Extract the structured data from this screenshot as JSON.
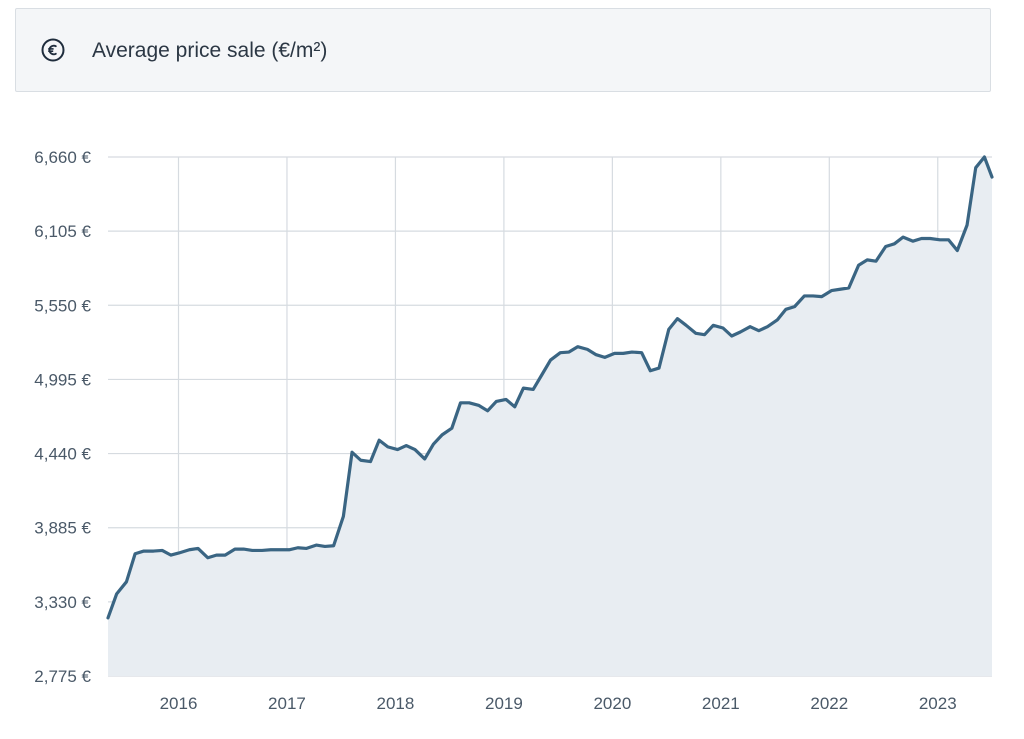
{
  "header": {
    "icon": "euro-circle-icon",
    "title": "Average price sale (€/m²)"
  },
  "colors": {
    "line": "#3a6583",
    "area": "#e8edf2",
    "grid": "#d6dbe0",
    "tick_text": "#4a5968",
    "header_bg": "#f4f6f8",
    "header_border": "#d9dee3"
  },
  "chart_data": {
    "type": "area",
    "title": "Average price sale (€/m²)",
    "xlabel": "",
    "ylabel": "",
    "y_unit": "€",
    "ylim": [
      2775,
      6660
    ],
    "y_ticks": [
      2775,
      3330,
      3885,
      4440,
      4995,
      5550,
      6105,
      6660
    ],
    "y_tick_labels": [
      "2,775 €",
      "3,330 €",
      "3,885 €",
      "4,440 €",
      "4,995 €",
      "5,550 €",
      "6,105 €",
      "6,660 €"
    ],
    "xlim": [
      2015.35,
      2023.5
    ],
    "x_ticks": [
      2016,
      2017,
      2018,
      2019,
      2020,
      2021,
      2022,
      2023
    ],
    "x_tick_labels": [
      "2016",
      "2017",
      "2018",
      "2019",
      "2020",
      "2021",
      "2022",
      "2023"
    ],
    "grid": true,
    "legend": "none",
    "series": [
      {
        "x": [
          2015.35,
          2015.43,
          2015.52,
          2015.6,
          2015.68,
          2015.77,
          2015.85,
          2015.93,
          2016.0,
          2016.1,
          2016.18,
          2016.27,
          2016.35,
          2016.43,
          2016.52,
          2016.6,
          2016.68,
          2016.77,
          2016.85,
          2016.93,
          2017.02,
          2017.1,
          2017.18,
          2017.27,
          2017.35,
          2017.43,
          2017.52,
          2017.6,
          2017.68,
          2017.77,
          2017.85,
          2017.93,
          2018.02,
          2018.1,
          2018.18,
          2018.27,
          2018.35,
          2018.43,
          2018.52,
          2018.6,
          2018.68,
          2018.77,
          2018.85,
          2018.93,
          2019.02,
          2019.1,
          2019.18,
          2019.27,
          2019.35,
          2019.43,
          2019.52,
          2019.6,
          2019.68,
          2019.77,
          2019.85,
          2019.93,
          2020.02,
          2020.1,
          2020.18,
          2020.27,
          2020.35,
          2020.43,
          2020.52,
          2020.6,
          2020.68,
          2020.77,
          2020.85,
          2020.93,
          2021.02,
          2021.1,
          2021.18,
          2021.27,
          2021.35,
          2021.43,
          2021.52,
          2021.6,
          2021.68,
          2021.77,
          2021.85,
          2021.93,
          2022.02,
          2022.1,
          2022.18,
          2022.27,
          2022.35,
          2022.43,
          2022.52,
          2022.6,
          2022.68,
          2022.77,
          2022.85,
          2022.93,
          2023.02,
          2023.1,
          2023.18,
          2023.27,
          2023.35,
          2023.43,
          2023.5
        ],
        "y": [
          3210,
          3390,
          3480,
          3690,
          3710,
          3710,
          3715,
          3680,
          3695,
          3720,
          3730,
          3660,
          3680,
          3680,
          3725,
          3725,
          3715,
          3715,
          3720,
          3720,
          3720,
          3735,
          3730,
          3755,
          3745,
          3750,
          3970,
          4450,
          4390,
          4380,
          4540,
          4490,
          4470,
          4500,
          4470,
          4400,
          4510,
          4580,
          4630,
          4820,
          4820,
          4800,
          4760,
          4830,
          4845,
          4790,
          4930,
          4920,
          5030,
          5140,
          5195,
          5200,
          5240,
          5220,
          5180,
          5160,
          5190,
          5190,
          5200,
          5195,
          5060,
          5080,
          5370,
          5450,
          5400,
          5340,
          5330,
          5400,
          5380,
          5320,
          5350,
          5390,
          5360,
          5390,
          5440,
          5520,
          5540,
          5620,
          5620,
          5615,
          5660,
          5670,
          5680,
          5850,
          5890,
          5880,
          5990,
          6010,
          6060,
          6030,
          6050,
          6050,
          6040,
          6040,
          5960,
          6150,
          6580,
          6660,
          6510
        ]
      }
    ]
  }
}
